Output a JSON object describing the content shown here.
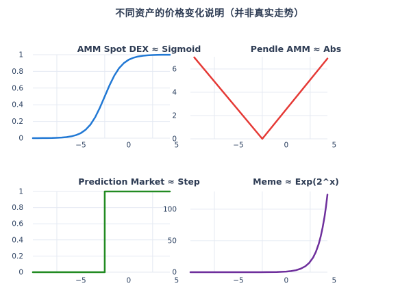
{
  "page": {
    "title": "不同资产的价格变化说明（并非真实走势）"
  },
  "colors": {
    "tick_text": "#2a3f5f",
    "title_text": "#2e3c54",
    "grid": "#e4e9f2",
    "background": "#ffffff"
  },
  "chart_data": [
    {
      "type": "line",
      "title": "AMM Spot DEX ≈ Sigmoid",
      "color": "#2178d4",
      "xlim": [
        -10,
        4.3
      ],
      "ylim": [
        0,
        1
      ],
      "xticks": [
        {
          "v": -5,
          "label": "−5"
        },
        {
          "v": 0,
          "label": "0"
        },
        {
          "v": 5,
          "label": "5"
        }
      ],
      "x_gridlines": [
        -7.5,
        -2.5,
        2.5
      ],
      "yticks": [
        {
          "v": 0,
          "label": "0"
        },
        {
          "v": 0.2,
          "label": "0.2"
        },
        {
          "v": 0.4,
          "label": "0.4"
        },
        {
          "v": 0.6,
          "label": "0.6"
        },
        {
          "v": 0.8,
          "label": "0.8"
        },
        {
          "v": 1,
          "label": "1"
        }
      ],
      "points": [
        [
          -10,
          0.0
        ],
        [
          -9.5,
          0.0
        ],
        [
          -9,
          0.001
        ],
        [
          -8.5,
          0.001
        ],
        [
          -8,
          0.002
        ],
        [
          -7.5,
          0.004
        ],
        [
          -7,
          0.007
        ],
        [
          -6.5,
          0.012
        ],
        [
          -6,
          0.021
        ],
        [
          -5.5,
          0.036
        ],
        [
          -5,
          0.06
        ],
        [
          -4.5,
          0.1
        ],
        [
          -4,
          0.161
        ],
        [
          -3.5,
          0.25
        ],
        [
          -3,
          0.366
        ],
        [
          -2.5,
          0.5
        ],
        [
          -2,
          0.634
        ],
        [
          -1.5,
          0.75
        ],
        [
          -1,
          0.839
        ],
        [
          -0.5,
          0.9
        ],
        [
          0,
          0.94
        ],
        [
          0.5,
          0.964
        ],
        [
          1,
          0.979
        ],
        [
          1.5,
          0.988
        ],
        [
          2,
          0.993
        ],
        [
          2.5,
          0.996
        ],
        [
          3,
          0.998
        ],
        [
          3.5,
          0.999
        ],
        [
          4,
          0.999
        ],
        [
          4.3,
          0.999
        ]
      ]
    },
    {
      "type": "line",
      "title": "Pendle AMM ≈ Abs",
      "color": "#e53935",
      "xlim": [
        -10,
        4.3
      ],
      "ylim": [
        0,
        7.05
      ],
      "xticks": [
        {
          "v": -5,
          "label": "−5"
        },
        {
          "v": 0,
          "label": "0"
        },
        {
          "v": 5,
          "label": "5"
        }
      ],
      "x_gridlines": [
        -7.5,
        -2.5,
        2.5
      ],
      "yticks": [
        {
          "v": 0,
          "label": "0"
        },
        {
          "v": 2,
          "label": "2"
        },
        {
          "v": 4,
          "label": "4"
        },
        {
          "v": 6,
          "label": "6"
        }
      ],
      "points": [
        [
          -9.6,
          7.0
        ],
        [
          -2.5,
          0
        ],
        [
          4.3,
          6.9
        ]
      ]
    },
    {
      "type": "line",
      "title": "Prediction Market ≈ Step",
      "color": "#228b22",
      "xlim": [
        -10,
        4.3
      ],
      "ylim": [
        0,
        1
      ],
      "xticks": [
        {
          "v": -5,
          "label": "−5"
        },
        {
          "v": 0,
          "label": "0"
        },
        {
          "v": 5,
          "label": "5"
        }
      ],
      "x_gridlines": [
        -7.5,
        -2.5,
        2.5
      ],
      "yticks": [
        {
          "v": 0,
          "label": "0"
        },
        {
          "v": 0.2,
          "label": "0.2"
        },
        {
          "v": 0.4,
          "label": "0.4"
        },
        {
          "v": 0.6,
          "label": "0.6"
        },
        {
          "v": 0.8,
          "label": "0.8"
        },
        {
          "v": 1,
          "label": "1"
        }
      ],
      "points": [
        [
          -10,
          0
        ],
        [
          -2.5,
          0
        ],
        [
          -2.5,
          1
        ],
        [
          4.3,
          1
        ]
      ]
    },
    {
      "type": "line",
      "title": "Meme ≈ Exp(2^x)",
      "color": "#6e2f9c",
      "xlim": [
        -10,
        4.3
      ],
      "ylim": [
        0,
        128
      ],
      "xticks": [
        {
          "v": -5,
          "label": "−5"
        },
        {
          "v": 0,
          "label": "0"
        },
        {
          "v": 5,
          "label": "5"
        }
      ],
      "x_gridlines": [
        -7.5,
        -2.5,
        2.5
      ],
      "yticks": [
        {
          "v": 0,
          "label": "0"
        },
        {
          "v": 50,
          "label": "50"
        },
        {
          "v": 100,
          "label": "100"
        }
      ],
      "points": [
        [
          -10,
          0
        ],
        [
          -8,
          0
        ],
        [
          -6,
          0.001
        ],
        [
          -5,
          0.004
        ],
        [
          -4,
          0.011
        ],
        [
          -3,
          0.035
        ],
        [
          -2,
          0.106
        ],
        [
          -1,
          0.326
        ],
        [
          0,
          1
        ],
        [
          0.5,
          1.75
        ],
        [
          1,
          3.06
        ],
        [
          1.5,
          5.4
        ],
        [
          2,
          9.4
        ],
        [
          2.4,
          14.7
        ],
        [
          2.8,
          23
        ],
        [
          3.1,
          32.3
        ],
        [
          3.4,
          45.2
        ],
        [
          3.6,
          56.7
        ],
        [
          3.8,
          70.9
        ],
        [
          4,
          88
        ],
        [
          4.15,
          104
        ],
        [
          4.3,
          123
        ]
      ]
    }
  ]
}
